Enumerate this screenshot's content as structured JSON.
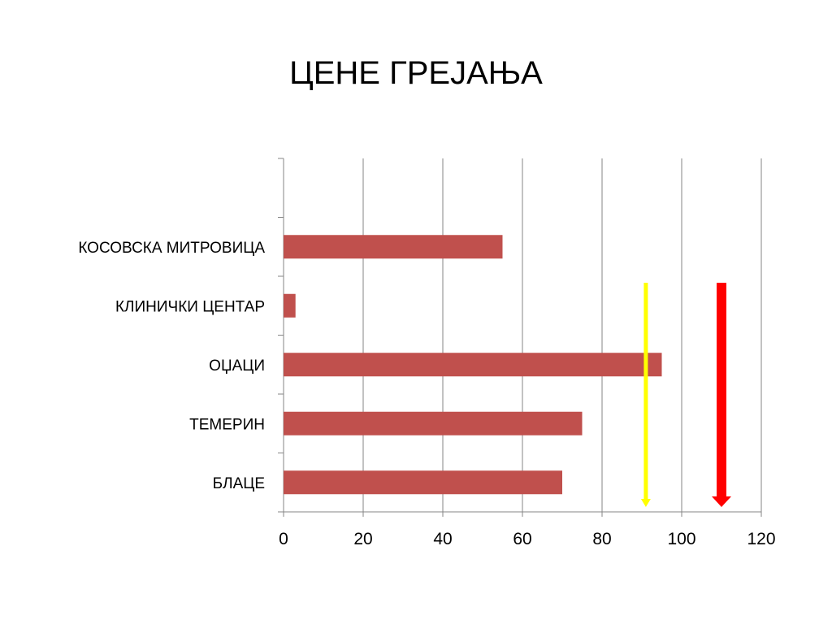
{
  "slide": {
    "title": "ЦЕНЕ ГРЕЈАЊА"
  },
  "chart_data": {
    "type": "bar",
    "orientation": "horizontal",
    "title": "ЦЕНЕ ГРЕЈАЊА",
    "xlabel": "",
    "ylabel": "",
    "categories": [
      "КОСОВСКА МИТРОВИЦА",
      "КЛИНИЧКИ ЦЕНТАР",
      "ОЏАЦИ",
      "ТЕМЕРИН",
      "БЛАЦЕ"
    ],
    "category_slots": 6,
    "values": [
      55,
      3,
      95,
      75,
      70
    ],
    "xlim": [
      0,
      120
    ],
    "xticks": [
      0,
      20,
      40,
      60,
      80,
      100,
      120
    ],
    "grid": "vertical",
    "legend": "none",
    "bar_color": "#C0504D",
    "grid_color": "#868686",
    "arrows": [
      {
        "name": "yellow-arrow",
        "x": 91,
        "color": "#FFFF00",
        "direction": "down"
      },
      {
        "name": "red-arrow",
        "x": 110,
        "color": "#FF0000",
        "direction": "down"
      }
    ]
  }
}
